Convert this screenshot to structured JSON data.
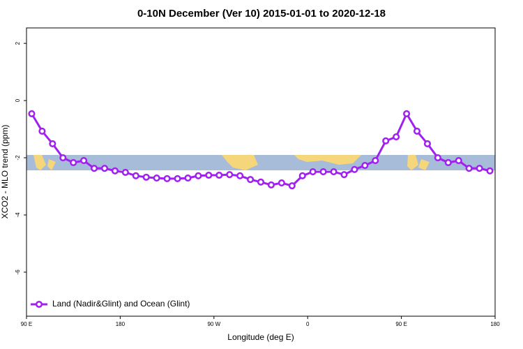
{
  "chart_data": {
    "type": "line",
    "title": "0-10N December (Ver 10)   2015-01-01 to 2020-12-18",
    "xlabel": "Longitude (deg E)",
    "ylabel": "XCO2 - MLO trend (ppm)",
    "x": [
      95,
      105,
      115,
      125,
      135,
      145,
      155,
      165,
      175,
      185,
      195,
      205,
      215,
      225,
      235,
      245,
      255,
      265,
      275,
      285,
      295,
      305,
      315,
      325,
      335,
      345,
      355,
      365,
      375,
      385,
      395,
      405,
      415,
      425,
      435,
      445,
      455,
      465,
      475,
      485,
      495,
      505,
      515,
      525,
      535
    ],
    "series": [
      {
        "name": "Land (Nadir&Glint) and Ocean (Glint)",
        "color": "#a020f0",
        "values": [
          -0.46,
          -1.07,
          -1.51,
          -2.0,
          -2.17,
          -2.1,
          -2.37,
          -2.37,
          -2.46,
          -2.51,
          -2.63,
          -2.68,
          -2.71,
          -2.73,
          -2.73,
          -2.71,
          -2.63,
          -2.61,
          -2.61,
          -2.59,
          -2.63,
          -2.76,
          -2.85,
          -2.95,
          -2.88,
          -2.98,
          -2.63,
          -2.49,
          -2.49,
          -2.49,
          -2.59,
          -2.41,
          -2.27,
          -2.1,
          -1.41,
          -1.27,
          -0.46,
          -1.07,
          -1.51,
          -2.0,
          -2.17,
          -2.1,
          -2.37,
          -2.37,
          -2.46
        ]
      }
    ],
    "xlim": [
      90,
      540
    ],
    "xticks": [
      {
        "value": 90,
        "label": "90 E"
      },
      180,
      {
        "value": 270,
        "label": "90 W"
      },
      {
        "value": 360,
        "label": "0"
      },
      {
        "value": 450,
        "label": "90 E"
      },
      {
        "value": 540,
        "label": "180"
      }
    ],
    "ylim": [
      -7.54,
      2.54
    ],
    "yticks": [
      -6,
      -4,
      -2,
      0,
      2
    ],
    "legend": "bottom-left"
  }
}
